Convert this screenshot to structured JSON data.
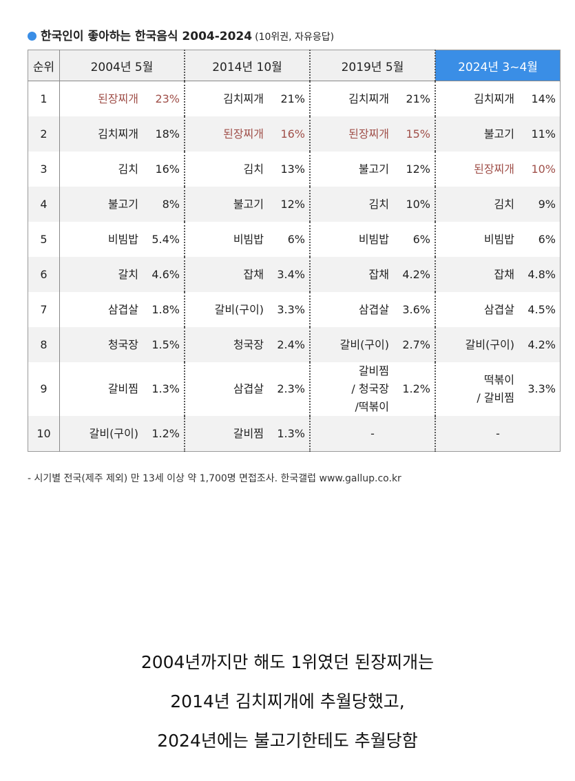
{
  "header": {
    "title": "한국인이 좋아하는 한국음식 2004-2024",
    "subtitle": "(10위권, 자유응답)"
  },
  "table": {
    "columns": [
      "순위",
      "2004년 5월",
      "2014년 10월",
      "2019년 5월",
      "2024년 3~4월"
    ],
    "rows": [
      {
        "rank": 1,
        "cells": [
          {
            "food": [
              "된장찌개"
            ],
            "share": "23%",
            "highlight": true
          },
          {
            "food": [
              "김치찌개"
            ],
            "share": "21%"
          },
          {
            "food": [
              "김치찌개"
            ],
            "share": "21%"
          },
          {
            "food": [
              "김치찌개"
            ],
            "share": "14%"
          }
        ]
      },
      {
        "rank": 2,
        "cells": [
          {
            "food": [
              "김치찌개"
            ],
            "share": "18%"
          },
          {
            "food": [
              "된장찌개"
            ],
            "share": "16%",
            "highlight": true
          },
          {
            "food": [
              "된장찌개"
            ],
            "share": "15%",
            "highlight": true
          },
          {
            "food": [
              "불고기"
            ],
            "share": "11%"
          }
        ]
      },
      {
        "rank": 3,
        "cells": [
          {
            "food": [
              "김치"
            ],
            "share": "16%"
          },
          {
            "food": [
              "김치"
            ],
            "share": "13%"
          },
          {
            "food": [
              "불고기"
            ],
            "share": "12%"
          },
          {
            "food": [
              "된장찌개"
            ],
            "share": "10%",
            "highlight": true
          }
        ]
      },
      {
        "rank": 4,
        "cells": [
          {
            "food": [
              "불고기"
            ],
            "share": "8%"
          },
          {
            "food": [
              "불고기"
            ],
            "share": "12%"
          },
          {
            "food": [
              "김치"
            ],
            "share": "10%"
          },
          {
            "food": [
              "김치"
            ],
            "share": "9%"
          }
        ]
      },
      {
        "rank": 5,
        "cells": [
          {
            "food": [
              "비빔밥"
            ],
            "share": "5.4%"
          },
          {
            "food": [
              "비빔밥"
            ],
            "share": "6%"
          },
          {
            "food": [
              "비빔밥"
            ],
            "share": "6%"
          },
          {
            "food": [
              "비빔밥"
            ],
            "share": "6%"
          }
        ]
      },
      {
        "rank": 6,
        "cells": [
          {
            "food": [
              "갈치"
            ],
            "share": "4.6%"
          },
          {
            "food": [
              "잡채"
            ],
            "share": "3.4%"
          },
          {
            "food": [
              "잡채"
            ],
            "share": "4.2%"
          },
          {
            "food": [
              "잡채"
            ],
            "share": "4.8%"
          }
        ]
      },
      {
        "rank": 7,
        "cells": [
          {
            "food": [
              "삼겹살"
            ],
            "share": "1.8%"
          },
          {
            "food": [
              "갈비(구이)"
            ],
            "share": "3.3%"
          },
          {
            "food": [
              "삼겹살"
            ],
            "share": "3.6%"
          },
          {
            "food": [
              "삼겹살"
            ],
            "share": "4.5%"
          }
        ]
      },
      {
        "rank": 8,
        "cells": [
          {
            "food": [
              "청국장"
            ],
            "share": "1.5%"
          },
          {
            "food": [
              "청국장"
            ],
            "share": "2.4%"
          },
          {
            "food": [
              "갈비(구이)"
            ],
            "share": "2.7%"
          },
          {
            "food": [
              "갈비(구이)"
            ],
            "share": "4.2%"
          }
        ]
      },
      {
        "rank": 9,
        "cells": [
          {
            "food": [
              "갈비찜"
            ],
            "share": "1.3%"
          },
          {
            "food": [
              "삼겹살"
            ],
            "share": "2.3%"
          },
          {
            "food": [
              "갈비찜",
              "/ 청국장",
              "/떡볶이"
            ],
            "share": "1.2%"
          },
          {
            "food": [
              "떡볶이",
              "/ 갈비찜"
            ],
            "share": "3.3%"
          }
        ]
      },
      {
        "rank": 10,
        "cells": [
          {
            "food": [
              "갈비(구이)"
            ],
            "share": "1.2%"
          },
          {
            "food": [
              "갈비찜"
            ],
            "share": "1.3%"
          },
          {
            "food": [
              "-"
            ]
          },
          {
            "food": [
              "-"
            ]
          }
        ]
      }
    ]
  },
  "footnote": "- 시기별 전국(제주 제외) 만 13세 이상 약 1,700명 면접조사. 한국갤럽 www.gallup.co.kr",
  "caption": [
    "2004년까지만 해도 1위였던 된장찌개는",
    "2014년 김치찌개에 추월당했고,",
    "2024년에는 불고기한테도 추월당함"
  ]
}
